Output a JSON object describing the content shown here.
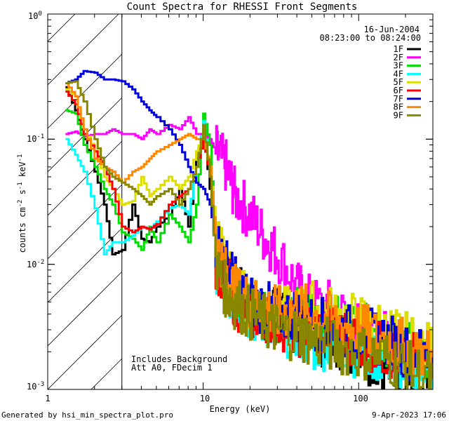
{
  "chart_data": {
    "type": "line",
    "title": "Count Spectra for RHESSI Front Segments",
    "xlabel": "Energy (keV)",
    "ylabel_parts": {
      "a": "counts cm",
      "b": "-2",
      "c": " s",
      "d": "-1",
      "e": " keV",
      "f": "-1"
    },
    "x_scale": "log",
    "y_scale": "log",
    "xlim": [
      1,
      300
    ],
    "ylim": [
      0.001,
      1
    ],
    "x_ticks": [
      {
        "value": 1,
        "label": "1"
      },
      {
        "value": 10,
        "label": "10"
      },
      {
        "value": 100,
        "label": "100"
      }
    ],
    "y_ticks": [
      {
        "value": 0.001,
        "base": "10",
        "exp": "-3"
      },
      {
        "value": 0.01,
        "base": "10",
        "exp": "-2"
      },
      {
        "value": 0.1,
        "base": "10",
        "exp": "-1"
      },
      {
        "value": 1,
        "base": "10",
        "exp": "0"
      }
    ],
    "hatched_region_xmax": 3,
    "date": "16-Jun-2004",
    "time_range": "08:23:00 to 08:24:00",
    "annotations": [
      "Includes Background",
      "Att A0, FDecim 1"
    ],
    "series": [
      {
        "name": "1F",
        "color": "#000000",
        "energy": [
          1.3,
          1.5,
          1.7,
          2,
          2.3,
          2.6,
          3,
          3.5,
          4,
          4.5,
          5,
          6,
          7,
          8,
          9,
          10,
          11,
          12,
          14,
          16,
          20,
          25,
          30,
          40,
          50,
          70,
          100,
          150,
          200,
          300
        ],
        "values": [
          0.26,
          0.17,
          0.1,
          0.055,
          0.03,
          0.012,
          0.013,
          0.03,
          0.016,
          0.015,
          0.02,
          0.025,
          0.04,
          0.02,
          0.07,
          0.12,
          0.04,
          0.012,
          0.008,
          0.006,
          0.005,
          0.004,
          0.0045,
          0.003,
          0.0025,
          0.0025,
          0.002,
          0.0015,
          0.0012,
          0.001
        ]
      },
      {
        "name": "2F",
        "color": "#ff00ff",
        "energy": [
          1.3,
          1.5,
          1.7,
          2,
          2.3,
          2.6,
          3,
          3.5,
          4,
          4.5,
          5,
          6,
          7,
          8,
          9,
          10,
          11,
          12,
          14,
          16,
          20,
          25,
          30,
          40,
          50,
          70,
          100,
          150,
          200,
          300
        ],
        "values": [
          0.11,
          0.115,
          0.105,
          0.11,
          0.11,
          0.12,
          0.11,
          0.11,
          0.1,
          0.12,
          0.11,
          0.13,
          0.12,
          0.15,
          0.11,
          0.11,
          0.1,
          0.08,
          0.06,
          0.035,
          0.025,
          0.016,
          0.012,
          0.0065,
          0.0048,
          0.0045,
          0.003,
          0.0025,
          0.0022,
          0.0018
        ]
      },
      {
        "name": "3F",
        "color": "#00dd00",
        "energy": [
          1.3,
          1.5,
          1.7,
          2,
          2.3,
          2.6,
          3,
          3.5,
          4,
          4.5,
          5,
          6,
          7,
          8,
          9,
          10,
          11,
          12,
          14,
          16,
          20,
          25,
          30,
          40,
          50,
          70,
          100,
          150,
          200,
          300
        ],
        "values": [
          0.17,
          0.16,
          0.09,
          0.06,
          0.04,
          0.03,
          0.018,
          0.016,
          0.013,
          0.02,
          0.015,
          0.025,
          0.02,
          0.015,
          0.03,
          0.16,
          0.09,
          0.012,
          0.008,
          0.006,
          0.0045,
          0.004,
          0.004,
          0.004,
          0.0042,
          0.0035,
          0.003,
          0.0025,
          0.0022,
          0.0015
        ]
      },
      {
        "name": "4F",
        "color": "#00ffff",
        "energy": [
          1.3,
          1.5,
          1.7,
          2,
          2.3,
          2.6,
          3,
          3.5,
          4,
          4.5,
          5,
          6,
          7,
          8,
          9,
          10,
          11,
          12,
          14,
          16,
          20,
          25,
          30,
          40,
          50,
          70,
          100,
          150,
          200,
          300
        ],
        "values": [
          0.1,
          0.075,
          0.055,
          0.028,
          0.012,
          0.015,
          0.015,
          0.017,
          0.02,
          0.019,
          0.022,
          0.028,
          0.03,
          0.025,
          0.06,
          0.14,
          0.05,
          0.01,
          0.007,
          0.005,
          0.004,
          0.0035,
          0.003,
          0.003,
          0.0022,
          0.0025,
          0.002,
          0.0018,
          0.0015,
          0.0013
        ]
      },
      {
        "name": "5F",
        "color": "#dddd00",
        "energy": [
          1.3,
          1.5,
          1.7,
          2,
          2.3,
          2.6,
          3,
          3.5,
          4,
          4.5,
          5,
          6,
          7,
          8,
          9,
          10,
          11,
          12,
          14,
          16,
          20,
          25,
          30,
          40,
          50,
          70,
          100,
          150,
          200,
          300
        ],
        "values": [
          0.25,
          0.22,
          0.12,
          0.08,
          0.05,
          0.04,
          0.03,
          0.032,
          0.05,
          0.035,
          0.04,
          0.05,
          0.04,
          0.05,
          0.08,
          0.11,
          0.06,
          0.02,
          0.01,
          0.006,
          0.005,
          0.004,
          0.004,
          0.004,
          0.0045,
          0.004,
          0.0035,
          0.003,
          0.0025,
          0.002
        ]
      },
      {
        "name": "6F",
        "color": "#ff0000",
        "energy": [
          1.3,
          1.5,
          1.7,
          2,
          2.3,
          2.6,
          3,
          3.5,
          4,
          4.5,
          5,
          6,
          7,
          8,
          9,
          10,
          11,
          12,
          14,
          16,
          20,
          25,
          30,
          40,
          50,
          70,
          100,
          150,
          200,
          300
        ],
        "values": [
          0.24,
          0.19,
          0.11,
          0.08,
          0.06,
          0.04,
          0.02,
          0.018,
          0.02,
          0.019,
          0.021,
          0.03,
          0.035,
          0.04,
          0.06,
          0.1,
          0.05,
          0.01,
          0.008,
          0.005,
          0.004,
          0.004,
          0.0035,
          0.003,
          0.003,
          0.0028,
          0.0025,
          0.002,
          0.0018,
          0.0015
        ]
      },
      {
        "name": "7F",
        "color": "#0000dd",
        "energy": [
          1.3,
          1.5,
          1.7,
          2,
          2.3,
          2.6,
          3,
          3.5,
          4,
          4.5,
          5,
          6,
          7,
          8,
          9,
          10,
          11,
          12,
          14,
          16,
          20,
          25,
          30,
          40,
          50,
          70,
          100,
          150,
          200,
          300
        ],
        "values": [
          0.28,
          0.3,
          0.35,
          0.34,
          0.3,
          0.3,
          0.29,
          0.25,
          0.2,
          0.17,
          0.15,
          0.12,
          0.09,
          0.06,
          0.045,
          0.04,
          0.03,
          0.015,
          0.01,
          0.007,
          0.005,
          0.0045,
          0.004,
          0.004,
          0.0035,
          0.003,
          0.0028,
          0.0025,
          0.002,
          0.0018
        ]
      },
      {
        "name": "8F",
        "color": "#ff8800",
        "energy": [
          1.3,
          1.5,
          1.7,
          2,
          2.3,
          2.6,
          3,
          3.5,
          4,
          4.5,
          5,
          6,
          7,
          8,
          9,
          10,
          11,
          12,
          14,
          16,
          20,
          25,
          30,
          40,
          50,
          70,
          100,
          150,
          200,
          300
        ],
        "values": [
          0.28,
          0.22,
          0.12,
          0.07,
          0.06,
          0.055,
          0.045,
          0.055,
          0.06,
          0.07,
          0.08,
          0.09,
          0.1,
          0.11,
          0.1,
          0.1,
          0.06,
          0.015,
          0.008,
          0.006,
          0.005,
          0.0045,
          0.004,
          0.0045,
          0.004,
          0.0035,
          0.003,
          0.0025,
          0.0022,
          0.0018
        ]
      },
      {
        "name": "9F",
        "color": "#888800",
        "energy": [
          1.3,
          1.5,
          1.7,
          2,
          2.3,
          2.6,
          3,
          3.5,
          4,
          4.5,
          5,
          6,
          7,
          8,
          9,
          10,
          11,
          12,
          14,
          16,
          20,
          25,
          30,
          40,
          50,
          70,
          100,
          150,
          200,
          300
        ],
        "values": [
          0.28,
          0.29,
          0.2,
          0.1,
          0.06,
          0.05,
          0.045,
          0.04,
          0.035,
          0.03,
          0.035,
          0.04,
          0.03,
          0.04,
          0.06,
          0.13,
          0.05,
          0.01,
          0.006,
          0.005,
          0.004,
          0.0035,
          0.003,
          0.0028,
          0.0025,
          0.0022,
          0.002,
          0.0018,
          0.0015,
          0.0012
        ]
      }
    ]
  },
  "footer": {
    "left": "Generated by hsi_min_spectra_plot.pro",
    "right": "9-Apr-2023 17:06"
  }
}
